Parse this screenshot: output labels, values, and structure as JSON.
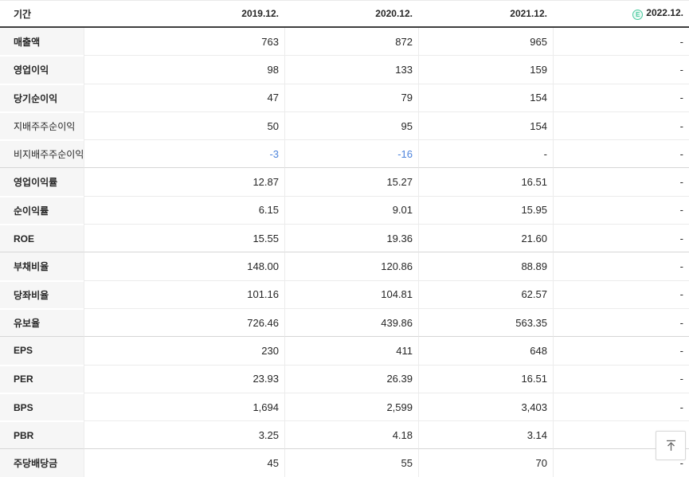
{
  "colors": {
    "negative_value": "#4d84dc",
    "estimate_icon": "#49c99f",
    "label_background": "#f6f6f6",
    "header_border": "#3e3e3e"
  },
  "table": {
    "period_label": "기간",
    "columns": [
      {
        "label": "2019.12."
      },
      {
        "label": "2020.12."
      },
      {
        "label": "2021.12."
      },
      {
        "label": "2022.12.",
        "estimate": true,
        "estimate_icon": "E"
      }
    ],
    "rows": [
      {
        "label": "매출액",
        "bold": true,
        "group_start": false,
        "values": [
          "763",
          "872",
          "965",
          "-"
        ]
      },
      {
        "label": "영업이익",
        "bold": true,
        "group_start": false,
        "values": [
          "98",
          "133",
          "159",
          "-"
        ]
      },
      {
        "label": "당기순이익",
        "bold": true,
        "group_start": false,
        "values": [
          "47",
          "79",
          "154",
          "-"
        ]
      },
      {
        "label": "지배주주순이익",
        "bold": false,
        "group_start": false,
        "values": [
          "50",
          "95",
          "154",
          "-"
        ]
      },
      {
        "label": "비지배주주순이익",
        "bold": false,
        "group_start": false,
        "values": [
          "-3",
          "-16",
          "-",
          "-"
        ]
      },
      {
        "label": "영업이익률",
        "bold": true,
        "group_start": true,
        "values": [
          "12.87",
          "15.27",
          "16.51",
          "-"
        ]
      },
      {
        "label": "순이익률",
        "bold": true,
        "group_start": false,
        "values": [
          "6.15",
          "9.01",
          "15.95",
          "-"
        ]
      },
      {
        "label": "ROE",
        "bold": true,
        "group_start": false,
        "values": [
          "15.55",
          "19.36",
          "21.60",
          "-"
        ]
      },
      {
        "label": "부채비율",
        "bold": true,
        "group_start": true,
        "values": [
          "148.00",
          "120.86",
          "88.89",
          "-"
        ]
      },
      {
        "label": "당좌비율",
        "bold": true,
        "group_start": false,
        "values": [
          "101.16",
          "104.81",
          "62.57",
          "-"
        ]
      },
      {
        "label": "유보율",
        "bold": true,
        "group_start": false,
        "values": [
          "726.46",
          "439.86",
          "563.35",
          "-"
        ]
      },
      {
        "label": "EPS",
        "bold": true,
        "group_start": true,
        "values": [
          "230",
          "411",
          "648",
          "-"
        ]
      },
      {
        "label": "PER",
        "bold": true,
        "group_start": false,
        "values": [
          "23.93",
          "26.39",
          "16.51",
          "-"
        ]
      },
      {
        "label": "BPS",
        "bold": true,
        "group_start": false,
        "values": [
          "1,694",
          "2,599",
          "3,403",
          "-"
        ]
      },
      {
        "label": "PBR",
        "bold": true,
        "group_start": false,
        "values": [
          "3.25",
          "4.18",
          "3.14",
          "-"
        ]
      },
      {
        "label": "주당배당금",
        "bold": true,
        "group_start": true,
        "values": [
          "45",
          "55",
          "70",
          "-"
        ]
      }
    ]
  },
  "scroll_top_button": {
    "icon": "arrow-up-to-top"
  }
}
